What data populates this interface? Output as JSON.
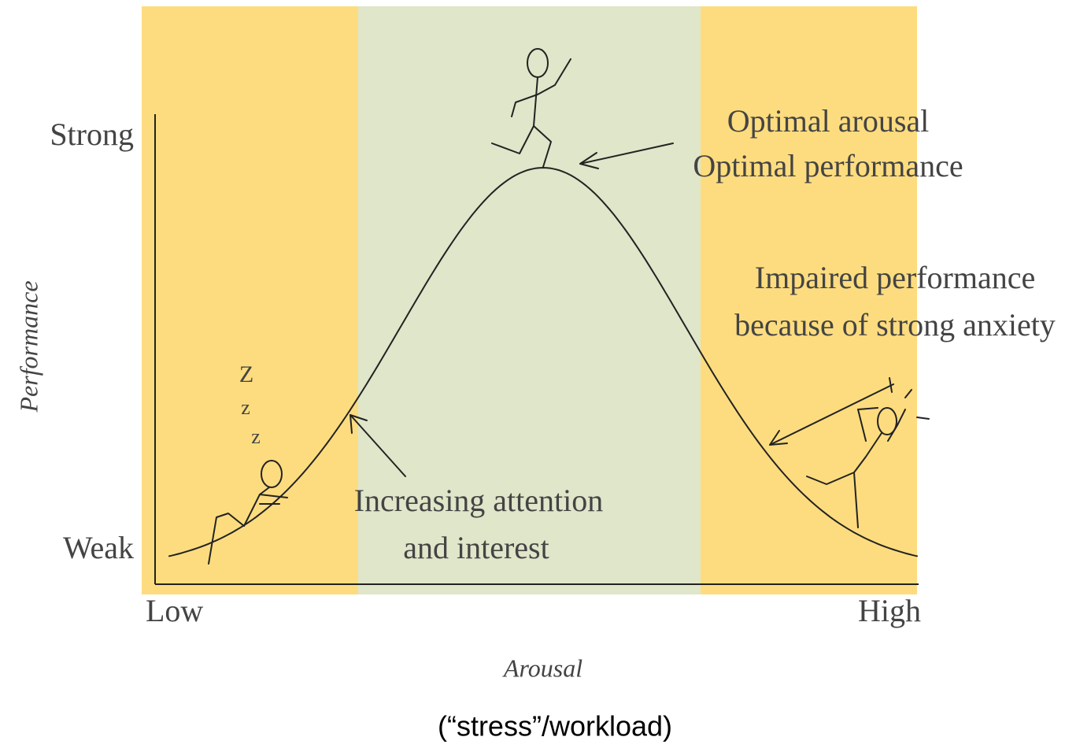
{
  "axes": {
    "y_label": "Performance",
    "y_top": "Strong",
    "y_bottom": "Weak",
    "x_label": "Arousal",
    "x_left": "Low",
    "x_right": "High",
    "caption": "(“stress”/workload)"
  },
  "annotations": {
    "optimal": [
      "Optimal arousal",
      "Optimal performance"
    ],
    "impaired": [
      "Impaired performance",
      "because of strong anxiety"
    ],
    "increasing": [
      "Increasing attention",
      "and interest"
    ],
    "sleep": [
      "Z",
      "z",
      "z"
    ]
  }
}
